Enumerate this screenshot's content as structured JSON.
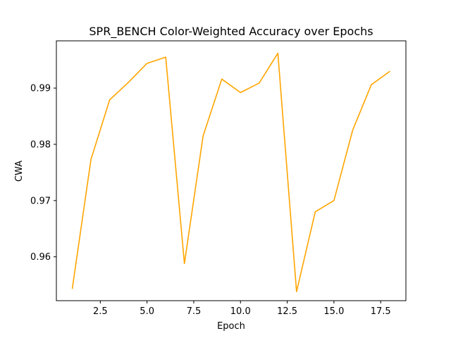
{
  "chart_data": {
    "type": "line",
    "title": "SPR_BENCH Color-Weighted Accuracy over Epochs",
    "xlabel": "Epoch",
    "ylabel": "CWA",
    "xlim": [
      0.15,
      18.85
    ],
    "ylim": [
      0.9522,
      0.9984
    ],
    "x_ticks": [
      2.5,
      5.0,
      7.5,
      10.0,
      12.5,
      15.0,
      17.5
    ],
    "x_tick_labels": [
      "2.5",
      "5.0",
      "7.5",
      "10.0",
      "12.5",
      "15.0",
      "17.5"
    ],
    "y_ticks": [
      0.96,
      0.97,
      0.98,
      0.99
    ],
    "y_tick_labels": [
      "0.96",
      "0.97",
      "0.98",
      "0.99"
    ],
    "grid": false,
    "series": [
      {
        "color": "#ffa500",
        "x": [
          1,
          2,
          3,
          4,
          5,
          6,
          7,
          8,
          9,
          10,
          11,
          12,
          13,
          14,
          15,
          16,
          17,
          18
        ],
        "values": [
          0.9543,
          0.9773,
          0.9879,
          0.991,
          0.9944,
          0.9955,
          0.9588,
          0.9815,
          0.9916,
          0.9892,
          0.9909,
          0.9962,
          0.9538,
          0.968,
          0.97,
          0.9825,
          0.9906,
          0.993
        ]
      }
    ]
  }
}
